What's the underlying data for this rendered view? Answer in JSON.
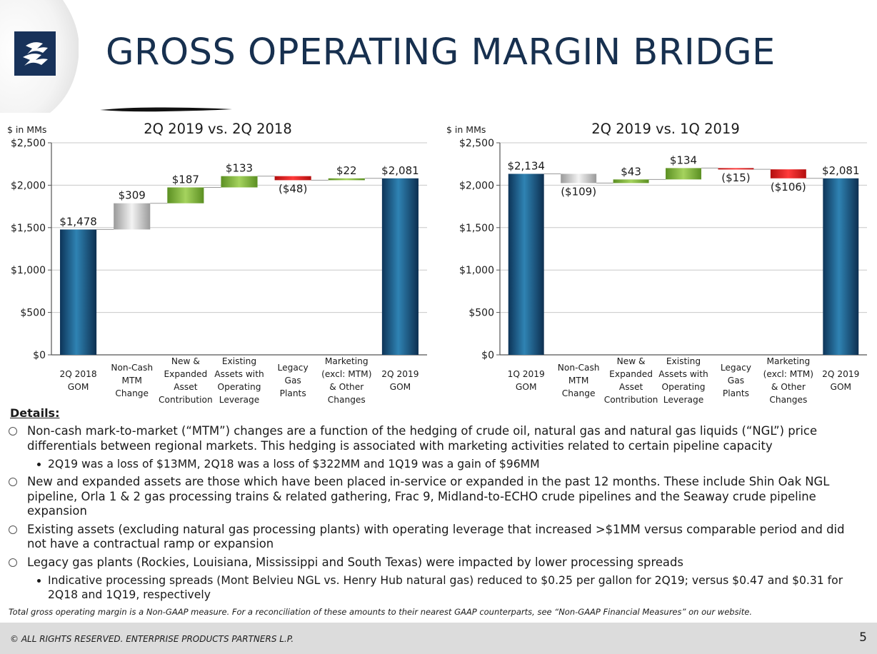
{
  "header": {
    "title": "GROSS OPERATING MARGIN BRIDGE"
  },
  "chart_data": [
    {
      "type": "bar",
      "subtype": "waterfall",
      "title": "2Q 2019 vs. 2Q 2018",
      "ylabel": "$ in MMs",
      "ylim": [
        0,
        2500
      ],
      "yticks": [
        "$0",
        "$500",
        "$1,000",
        "$1,500",
        "$2,000",
        "$2,500"
      ],
      "grid": true,
      "categories": [
        [
          "2Q 2018",
          "GOM"
        ],
        [
          "Non-Cash",
          "MTM",
          "Change"
        ],
        [
          "New &",
          "Expanded",
          "Asset",
          "Contribution"
        ],
        [
          "Existing",
          "Assets with",
          "Operating",
          "Leverage"
        ],
        [
          "Legacy",
          "Gas",
          "Plants"
        ],
        [
          "Marketing",
          "(excl: MTM)",
          "& Other",
          "Changes"
        ],
        [
          "2Q 2019",
          "GOM"
        ]
      ],
      "values": [
        1478,
        309,
        187,
        133,
        -48,
        22,
        2081
      ],
      "kinds": [
        "total",
        "mtm",
        "pos",
        "pos",
        "neg",
        "pos",
        "total"
      ],
      "value_labels": [
        "$1,478",
        "$309",
        "$187",
        "$133",
        "($48)",
        "$22",
        "$2,081"
      ]
    },
    {
      "type": "bar",
      "subtype": "waterfall",
      "title": "2Q 2019 vs. 1Q 2019",
      "ylabel": "$ in MMs",
      "ylim": [
        0,
        2500
      ],
      "yticks": [
        "$0",
        "$500",
        "$1,000",
        "$1,500",
        "$2,000",
        "$2,500"
      ],
      "grid": true,
      "categories": [
        [
          "1Q 2019",
          "GOM"
        ],
        [
          "Non-Cash",
          "MTM",
          "Change"
        ],
        [
          "New &",
          "Expanded",
          "Asset",
          "Contribution"
        ],
        [
          "Existing",
          "Assets with",
          "Operating",
          "Leverage"
        ],
        [
          "Legacy",
          "Gas",
          "Plants"
        ],
        [
          "Marketing",
          "(excl: MTM)",
          "& Other",
          "Changes"
        ],
        [
          "2Q 2019",
          "GOM"
        ]
      ],
      "values": [
        2134,
        -109,
        43,
        134,
        -15,
        -106,
        2081
      ],
      "kinds": [
        "total",
        "mtm",
        "pos",
        "pos",
        "neg",
        "neg",
        "total"
      ],
      "value_labels": [
        "$2,134",
        "($109)",
        "$43",
        "$134",
        "($15)",
        "($106)",
        "$2,081"
      ]
    }
  ],
  "details": {
    "heading": "Details:",
    "bullet1": "Non-cash mark-to-market (“MTM”) changes are a function of the hedging of crude oil, natural gas and natural gas liquids (“NGL”) price differentials between regional markets.  This hedging is associated with marketing activities related to certain pipeline capacity",
    "bullet1_sub": "2Q19 was a loss of $13MM, 2Q18 was a loss of $322MM and 1Q19 was a gain of $96MM",
    "bullet2": "New and expanded assets are those which have been placed in-service or expanded in the past 12 months.  These include Shin Oak NGL pipeline, Orla 1 & 2 gas processing  trains & related gathering, Frac 9, Midland-to-ECHO crude pipelines and the Seaway crude pipeline expansion",
    "bullet3": "Existing assets (excluding natural gas processing plants) with operating leverage that increased >$1MM versus comparable period and did not have a contractual ramp or expansion",
    "bullet4": "Legacy gas plants (Rockies, Louisiana, Mississippi and South Texas) were impacted by lower processing spreads",
    "bullet4_sub": "Indicative processing spreads (Mont Belvieu NGL vs. Henry Hub natural gas) reduced to $0.25 per gallon for 2Q19; versus $0.47 and $0.31 for 2Q18 and 1Q19, respectively"
  },
  "footnote": "Total gross operating margin is a Non-GAAP measure. For a reconciliation of these amounts to their nearest GAAP counterparts, see “Non-GAAP Financial Measures” on our website.",
  "footer": {
    "copyright": "© ALL RIGHTS RESERVED. ENTERPRISE PRODUCTS PARTNERS L.P.",
    "page_number": "5"
  },
  "colors": {
    "title": "#17304f",
    "logo": "#18325a",
    "total_bar": "#1f5f8a",
    "positive_bar": "#7fb13d",
    "negative_bar": "#d81e1e",
    "mtm_bar": "#bdbdbd"
  },
  "icons": {
    "logo": "enterprise-logo-icon"
  }
}
